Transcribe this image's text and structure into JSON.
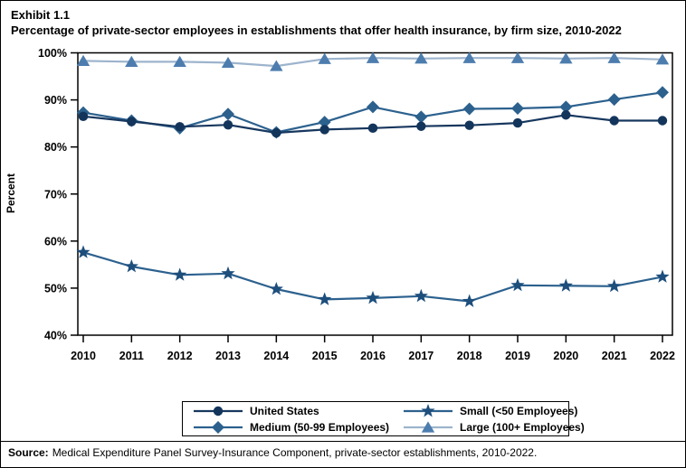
{
  "window": {
    "exhibit_label": "Exhibit 1.1",
    "title": "Percentage of private-sector employees in establishments that offer health insurance, by firm size, 2010-2022"
  },
  "chart_data": {
    "type": "line",
    "x": [
      2010,
      2011,
      2012,
      2013,
      2014,
      2015,
      2016,
      2017,
      2018,
      2019,
      2020,
      2021,
      2022
    ],
    "series": [
      {
        "name": "United States",
        "marker": "circle",
        "line_color": "#17375e",
        "marker_color": "#14355b",
        "values": [
          86.5,
          85.4,
          84.3,
          84.7,
          83.0,
          83.7,
          84.0,
          84.4,
          84.6,
          85.1,
          86.8,
          85.6,
          85.6
        ]
      },
      {
        "name": "Medium (50-99 Employees)",
        "marker": "diamond",
        "line_color": "#2c618e",
        "marker_color": "#2c618e",
        "values": [
          87.3,
          85.6,
          84.0,
          87.0,
          83.1,
          85.3,
          88.5,
          86.4,
          88.1,
          88.2,
          88.5,
          90.1,
          91.6
        ]
      },
      {
        "name": "Small (<50 Employees)",
        "marker": "star",
        "line_color": "#2c618e",
        "marker_color": "#1d4e7c",
        "values": [
          57.6,
          54.6,
          52.8,
          53.1,
          49.8,
          47.6,
          47.9,
          48.3,
          47.2,
          50.6,
          50.5,
          50.4,
          52.4
        ]
      },
      {
        "name": "Large (100+ Employees)",
        "marker": "triangle",
        "line_color": "#9db4cd",
        "marker_color": "#4d7dae",
        "values": [
          98.3,
          98.1,
          98.1,
          97.9,
          97.2,
          98.7,
          98.9,
          98.8,
          98.9,
          98.9,
          98.8,
          98.9,
          98.6
        ]
      }
    ],
    "title": "Percentage of private-sector employees in establishments that offer health insurance, by firm size, 2010-2022",
    "xlabel": "",
    "ylabel": "Percent",
    "ylim": [
      40,
      100
    ],
    "ytick_step": 10,
    "ytick_suffix": "%",
    "grid": false,
    "legend_position": "bottom"
  },
  "legend": {
    "entries": [
      {
        "label": "United States",
        "series_index": 0
      },
      {
        "label": "Small (<50 Employees)",
        "series_index": 2
      },
      {
        "label": "Medium (50-99 Employees)",
        "series_index": 1
      },
      {
        "label": "Large (100+ Employees)",
        "series_index": 3
      }
    ]
  },
  "footer": {
    "source_label": "Source:",
    "source_text": "Medical Expenditure Panel Survey-Insurance Component, private-sector establishments, 2010-2022."
  }
}
